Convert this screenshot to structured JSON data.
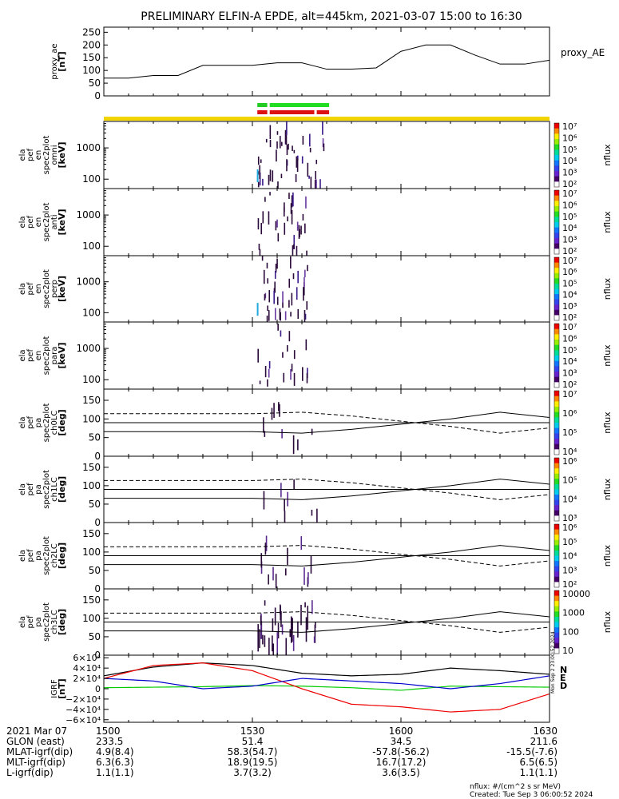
{
  "title": "PRELIMINARY ELFIN-A EPDE, alt=445km, 2021-03-07 15:00 to 16:30",
  "chart_data": {
    "type": "line",
    "x_range": [
      "15:00",
      "16:30"
    ],
    "x_tick_labels": [
      "1500",
      "1530",
      "1600",
      "1630"
    ],
    "panels": [
      {
        "id": "proxy_ae",
        "ylabel": [
          "proxy_ae",
          "[nT]"
        ],
        "legend": "proxy_AE",
        "ylim": [
          0,
          270
        ],
        "yticks": [
          "0",
          "50",
          "100",
          "150",
          "200",
          "250"
        ],
        "x_minutes": [
          0,
          5,
          10,
          15,
          20,
          25,
          30,
          35,
          40,
          45,
          50,
          55,
          60,
          65,
          70,
          75,
          80,
          85,
          90
        ],
        "values": [
          70,
          70,
          80,
          80,
          120,
          120,
          120,
          130,
          130,
          105,
          105,
          110,
          175,
          200,
          200,
          160,
          125,
          125,
          140
        ]
      },
      {
        "id": "omni",
        "ylabel": [
          "ela",
          "pef",
          "en",
          "spec2plot",
          "omni",
          "[keV]"
        ],
        "yticks": [
          "100",
          "1000"
        ],
        "ylim_keV": [
          50,
          7000
        ],
        "colorbar": {
          "label": "nflux",
          "ticks": [
            "10²",
            "10³",
            "10⁴",
            "10⁵",
            "10⁶",
            "10⁷"
          ]
        }
      },
      {
        "id": "anti",
        "ylabel": [
          "ela",
          "pef",
          "en",
          "spec2plot",
          "anti",
          "[keV]"
        ],
        "yticks": [
          "100",
          "1000"
        ],
        "ylim_keV": [
          50,
          7000
        ],
        "colorbar": {
          "label": "nflux",
          "ticks": [
            "10²",
            "10³",
            "10⁴",
            "10⁵",
            "10⁶",
            "10⁷"
          ]
        }
      },
      {
        "id": "perp",
        "ylabel": [
          "ela",
          "pef",
          "en",
          "spec2plot",
          "perp",
          "[keV]"
        ],
        "yticks": [
          "100",
          "1000"
        ],
        "ylim_keV": [
          50,
          7000
        ],
        "colorbar": {
          "label": "nflux",
          "ticks": [
            "10²",
            "10³",
            "10⁴",
            "10⁵",
            "10⁶",
            "10⁷"
          ]
        }
      },
      {
        "id": "para",
        "ylabel": [
          "ela",
          "pef",
          "en",
          "spec2plot",
          "para",
          "[keV]"
        ],
        "yticks": [
          "100",
          "1000"
        ],
        "ylim_keV": [
          50,
          7000
        ],
        "colorbar": {
          "label": "nflux",
          "ticks": [
            "10²",
            "10³",
            "10⁴",
            "10⁵",
            "10⁶",
            "10⁷"
          ]
        }
      },
      {
        "id": "ch0LC",
        "ylabel": [
          "ela",
          "pef",
          "pa",
          "spec2plot",
          "ch0LC",
          "[deg]"
        ],
        "yticks": [
          "0",
          "50",
          "100",
          "150"
        ],
        "ylim_deg": [
          0,
          180
        ],
        "colorbar": {
          "label": "nflux",
          "ticks": [
            "10⁴",
            "10⁵",
            "10⁶",
            "10⁷"
          ]
        }
      },
      {
        "id": "ch1LC",
        "ylabel": [
          "ela",
          "pef",
          "pa",
          "spec2plot",
          "ch1LC",
          "[deg]"
        ],
        "yticks": [
          "0",
          "50",
          "100",
          "150"
        ],
        "ylim_deg": [
          0,
          180
        ],
        "colorbar": {
          "label": "nflux",
          "ticks": [
            "10³",
            "10⁴",
            "10⁵",
            "10⁶"
          ]
        }
      },
      {
        "id": "ch2LC",
        "ylabel": [
          "ela",
          "pef",
          "pa",
          "spec2plot",
          "ch2LC",
          "[deg]"
        ],
        "yticks": [
          "0",
          "50",
          "100",
          "150"
        ],
        "ylim_deg": [
          0,
          180
        ],
        "colorbar": {
          "label": "nflux",
          "ticks": [
            "10²",
            "10³",
            "10⁴",
            "10⁵",
            "10⁶"
          ]
        }
      },
      {
        "id": "ch3LC",
        "ylabel": [
          "ela",
          "pef",
          "pa",
          "spec2plot",
          "ch3LC",
          "[deg]"
        ],
        "yticks": [
          "0",
          "50",
          "100",
          "150"
        ],
        "ylim_deg": [
          0,
          180
        ],
        "colorbar": {
          "label": "nflux",
          "ticks": [
            "10",
            "100",
            "1000",
            "10000"
          ]
        }
      },
      {
        "id": "igrf",
        "ylabel": [
          "IGRF",
          "[nT]"
        ],
        "yticks": [
          "6×10⁴",
          "4×10⁴",
          "2×10⁴",
          "0",
          "−2×10⁴",
          "−4×10⁴",
          "−6×10⁴"
        ],
        "ylim": [
          -65000,
          65000
        ],
        "legend": [
          "N",
          "E",
          "D"
        ],
        "series_colors": {
          "N": "#000000",
          "E": "#00cc00",
          "D": "#ee0000",
          "extra": "#0000cc"
        },
        "x_minutes": [
          0,
          10,
          20,
          30,
          40,
          50,
          60,
          70,
          80,
          90
        ],
        "series": [
          {
            "name": "N",
            "values": [
              25000,
              42000,
              50000,
              45000,
              30000,
              25000,
              28000,
              40000,
              35000,
              28000
            ]
          },
          {
            "name": "E",
            "values": [
              2000,
              3000,
              4000,
              6000,
              5000,
              2000,
              -3000,
              5000,
              4000,
              3000
            ]
          },
          {
            "name": "D",
            "values": [
              20000,
              45000,
              50000,
              35000,
              0,
              -30000,
              -35000,
              -45000,
              -40000,
              -10000
            ]
          },
          {
            "name": "",
            "values": [
              20000,
              15000,
              0,
              5000,
              20000,
              15000,
              10000,
              0,
              10000,
              25000
            ]
          }
        ]
      }
    ],
    "orbit_table": {
      "rows": [
        {
          "label": "2021 Mar 07",
          "values": [
            "1500",
            "1530",
            "1600",
            "1630"
          ]
        },
        {
          "label": "GLON (east)",
          "values": [
            "233.5",
            "51.4",
            "34.5",
            "211.6"
          ]
        },
        {
          "label": "MLAT-igrf(dip)",
          "values": [
            "4.9(8.4)",
            "58.3(54.7)",
            "-57.8(-56.2)",
            "-15.5(-7.6)"
          ]
        },
        {
          "label": "MLT-igrf(dip)",
          "values": [
            "6.3(6.3)",
            "18.9(19.5)",
            "16.7(17.2)",
            "6.5(6.5)"
          ]
        },
        {
          "label": "L-igrf(dip)",
          "values": [
            "1.1(1.1)",
            "3.7(3.2)",
            "3.6(3.5)",
            "1.1(1.1)"
          ]
        }
      ]
    }
  },
  "footer": {
    "nflux_units": "nflux: #/(cm^2 s sr MeV)",
    "created": "Created: Tue Sep  3 06:00:52 2024",
    "side_stamp": "Mon Sep  2 23:00:52 2024"
  }
}
